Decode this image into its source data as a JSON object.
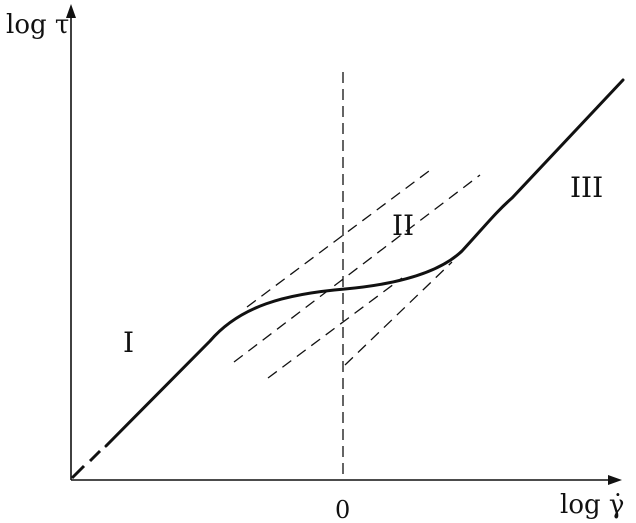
{
  "axes": {
    "y_label": "log τ",
    "x_label": "log γ̇",
    "origin_tick": "0"
  },
  "regions": [
    {
      "id": "I",
      "label": "I"
    },
    {
      "id": "II",
      "label": "II"
    },
    {
      "id": "III",
      "label": "III"
    }
  ],
  "style": {
    "ink": "#111111",
    "background": "#ffffff"
  }
}
